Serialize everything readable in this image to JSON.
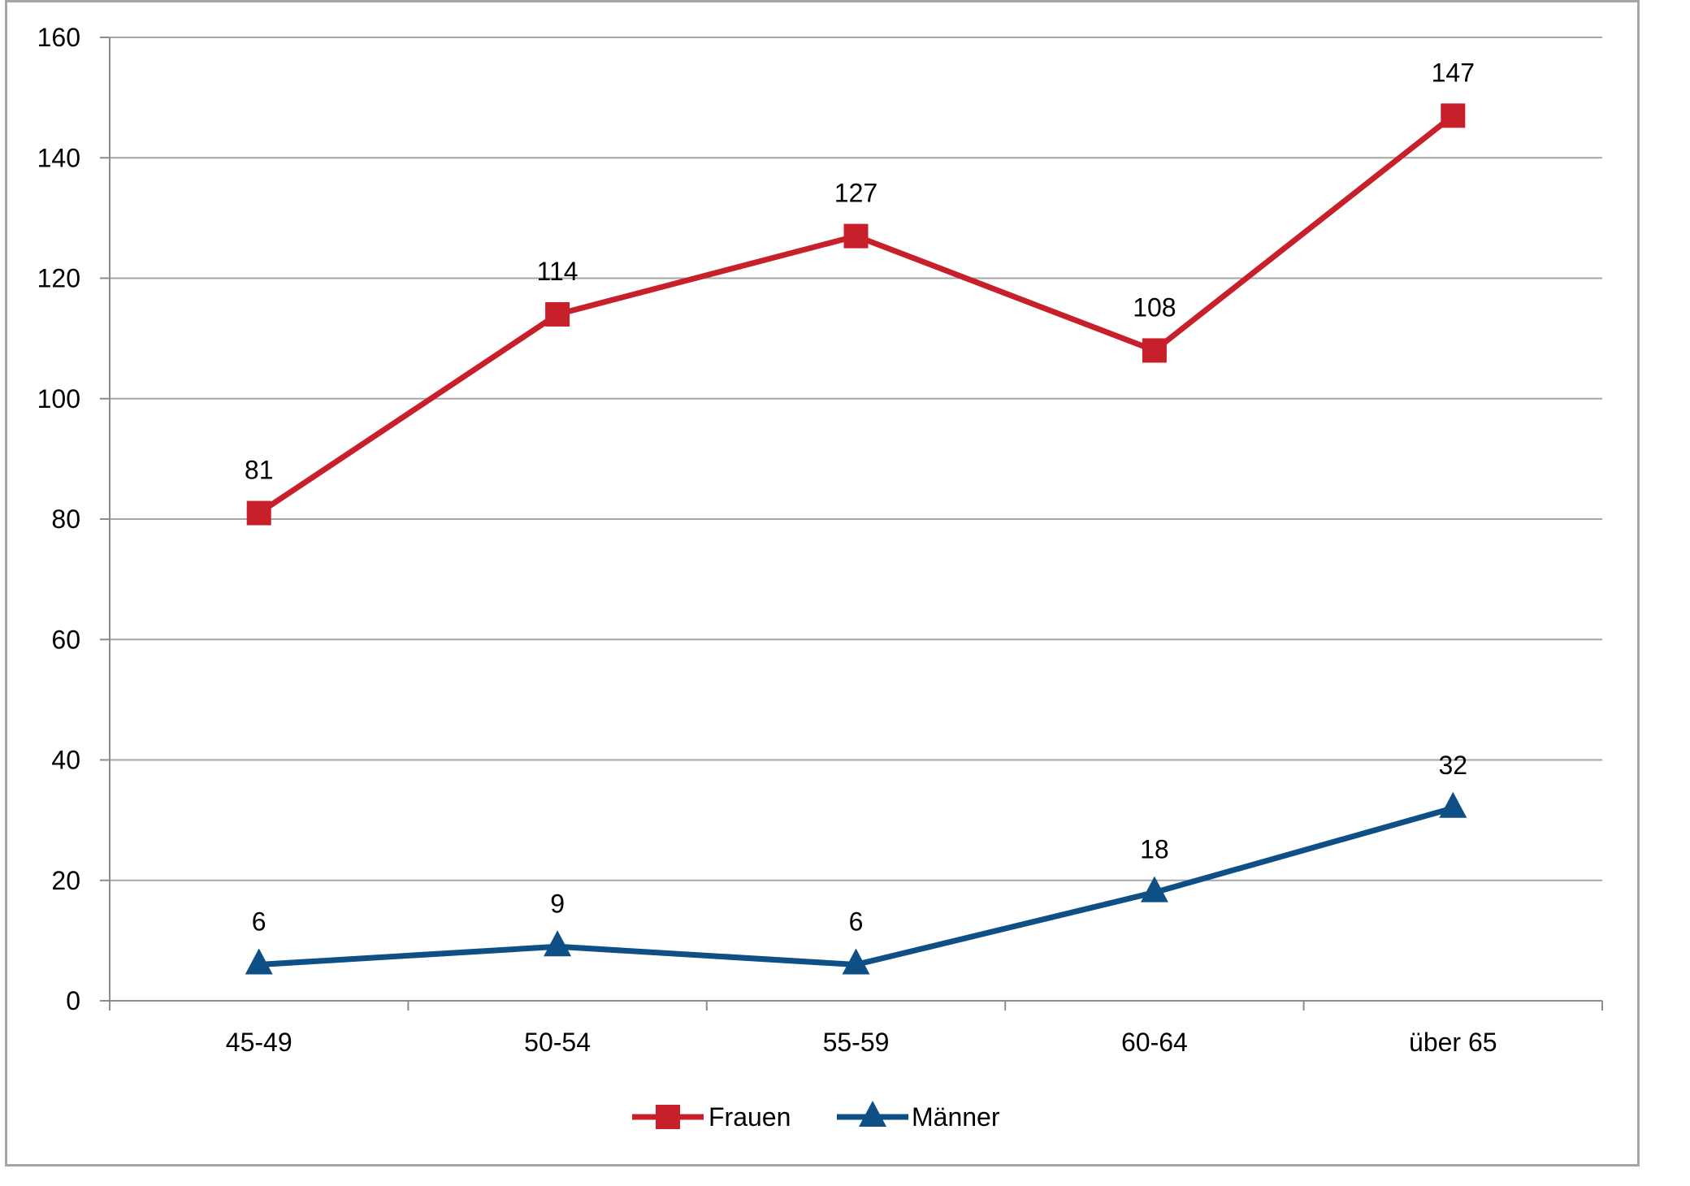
{
  "chart_data": {
    "type": "line",
    "title": "",
    "xlabel": "",
    "ylabel": "",
    "categories": [
      "45-49",
      "50-54",
      "55-59",
      "60-64",
      "über 65"
    ],
    "ylim": [
      0,
      160
    ],
    "yticks": [
      0,
      20,
      40,
      60,
      80,
      100,
      120,
      140,
      160
    ],
    "ytick_labels": [
      "0",
      "20",
      "40",
      "60",
      "80",
      "100",
      "120",
      "140",
      "160"
    ],
    "grid": true,
    "legend_position": "bottom",
    "series": [
      {
        "name": "Frauen",
        "values": [
          81,
          114,
          127,
          108,
          147
        ],
        "labels": [
          "81",
          "114",
          "127",
          "108",
          "147"
        ],
        "color": "#c8202b",
        "marker": "square"
      },
      {
        "name": "Männer",
        "values": [
          6,
          9,
          6,
          18,
          32
        ],
        "labels": [
          "6",
          "9",
          "6",
          "18",
          "32"
        ],
        "color": "#0e4f85",
        "marker": "triangle"
      }
    ]
  }
}
